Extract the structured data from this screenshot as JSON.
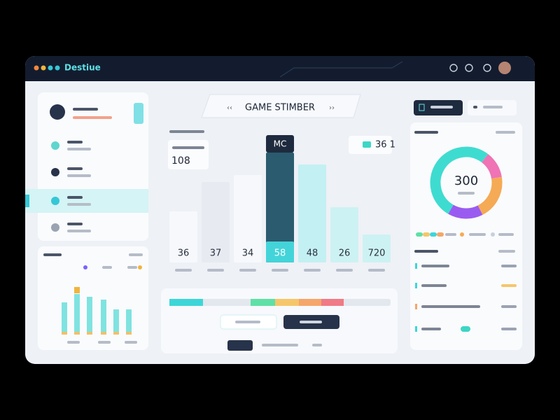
{
  "window": {
    "app_name": "Destiue"
  },
  "header": {
    "title": "GAME STIMBER"
  },
  "stats": {
    "left_value": "108",
    "highlight": "MC",
    "right_value": "36 1"
  },
  "bars": {
    "labels": [
      36,
      37,
      34,
      58,
      48,
      26,
      720
    ]
  },
  "donut": {
    "center_value": 300
  }
}
